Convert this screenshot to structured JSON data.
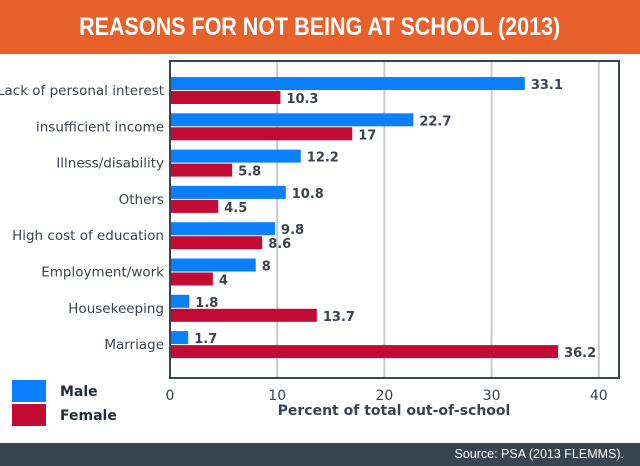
{
  "header": {
    "title": "REASONS FOR NOT BEING AT SCHOOL (2013)",
    "background_color": "#e8602a"
  },
  "footer": {
    "source": "Source: PSA (2013 FLEMMS).",
    "background_color": "#38444f"
  },
  "chart_data": {
    "type": "bar",
    "orientation": "horizontal",
    "title": "REASONS FOR NOT BEING AT SCHOOL (2013)",
    "xlabel": "Percent of total out-of-school",
    "ylabel": "",
    "xlim": [
      0,
      42
    ],
    "xticks": [
      0,
      10,
      20,
      30,
      40
    ],
    "grid": true,
    "legend_position": "bottom-left",
    "categories": [
      "Lack of personal interest",
      "insufficient income",
      "Illness/disability",
      "Others",
      "High cost of education",
      "Employment/work",
      "Housekeeping",
      "Marriage"
    ],
    "series": [
      {
        "name": "Male",
        "color": "#0a80ff",
        "values": [
          33.1,
          22.7,
          12.2,
          10.8,
          9.8,
          8,
          1.8,
          1.7
        ],
        "labels": [
          "33.1",
          "22.7",
          "12.2",
          "10.8",
          "9.8",
          "8",
          "1.8",
          "1.7"
        ]
      },
      {
        "name": "Female",
        "color": "#c20a34",
        "values": [
          10.3,
          17,
          5.8,
          4.5,
          8.6,
          4,
          13.7,
          36.2
        ],
        "labels": [
          "10.3",
          "17",
          "5.8",
          "4.5",
          "8.6",
          "4",
          "13.7",
          "36.2"
        ]
      }
    ]
  }
}
